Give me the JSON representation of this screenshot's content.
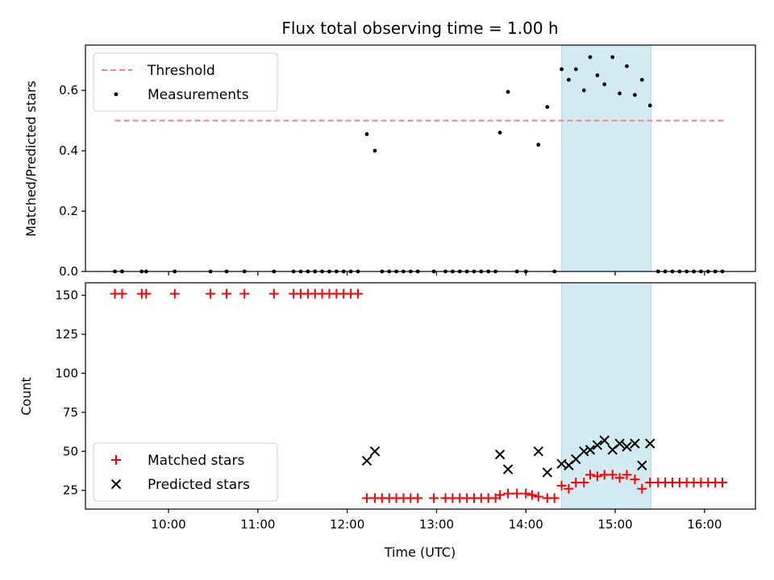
{
  "figure": {
    "title": "Flux total observing time = 1.00 h"
  },
  "chart_data": [
    {
      "type": "scatter",
      "ylabel": "Matched/Predicted stars",
      "xlabel": "",
      "xlim": [
        9.07,
        16.57
      ],
      "ylim": [
        0.0,
        0.75
      ],
      "yticks": [
        "0.0",
        "0.2",
        "0.4",
        "0.6"
      ],
      "ytick_values": [
        0.0,
        0.2,
        0.4,
        0.6
      ],
      "grid": false,
      "legend_position": "upper-left",
      "highlight_span": {
        "start": 14.4,
        "end": 15.4,
        "color": "#add8e6"
      },
      "threshold": {
        "name": "Threshold",
        "value": 0.5,
        "x_start": 9.4,
        "x_end": 16.22,
        "color": "#ff7f7f"
      },
      "series": [
        {
          "name": "Measurements",
          "color": "#000000",
          "marker": "dot",
          "points": [
            [
              9.4,
              0
            ],
            [
              9.48,
              0
            ],
            [
              9.7,
              0
            ],
            [
              9.75,
              0
            ],
            [
              10.07,
              0
            ],
            [
              10.47,
              0
            ],
            [
              10.65,
              0
            ],
            [
              10.85,
              0
            ],
            [
              11.18,
              0
            ],
            [
              11.4,
              0
            ],
            [
              11.48,
              0
            ],
            [
              11.56,
              0
            ],
            [
              11.64,
              0
            ],
            [
              11.72,
              0
            ],
            [
              11.8,
              0
            ],
            [
              11.88,
              0
            ],
            [
              11.96,
              0
            ],
            [
              12.04,
              0
            ],
            [
              12.12,
              0
            ],
            [
              12.22,
              0.455
            ],
            [
              12.31,
              0.4
            ],
            [
              12.39,
              0
            ],
            [
              12.47,
              0
            ],
            [
              12.55,
              0
            ],
            [
              12.63,
              0
            ],
            [
              12.71,
              0
            ],
            [
              12.79,
              0
            ],
            [
              12.97,
              0
            ],
            [
              13.1,
              0
            ],
            [
              13.18,
              0
            ],
            [
              13.26,
              0
            ],
            [
              13.34,
              0
            ],
            [
              13.42,
              0
            ],
            [
              13.5,
              0
            ],
            [
              13.58,
              0
            ],
            [
              13.66,
              0
            ],
            [
              13.71,
              0.46
            ],
            [
              13.8,
              0.595
            ],
            [
              13.9,
              0
            ],
            [
              14.0,
              0
            ],
            [
              14.14,
              0.42
            ],
            [
              14.24,
              0.545
            ],
            [
              14.32,
              0
            ],
            [
              14.4,
              0.67
            ],
            [
              14.48,
              0.635
            ],
            [
              14.56,
              0.67
            ],
            [
              14.65,
              0.6
            ],
            [
              14.72,
              0.71
            ],
            [
              14.8,
              0.65
            ],
            [
              14.88,
              0.62
            ],
            [
              14.97,
              0.71
            ],
            [
              15.05,
              0.59
            ],
            [
              15.13,
              0.68
            ],
            [
              15.22,
              0.585
            ],
            [
              15.3,
              0.635
            ],
            [
              15.39,
              0.55
            ],
            [
              15.48,
              0
            ],
            [
              15.56,
              0
            ],
            [
              15.64,
              0
            ],
            [
              15.72,
              0
            ],
            [
              15.8,
              0
            ],
            [
              15.88,
              0
            ],
            [
              15.96,
              0
            ],
            [
              16.04,
              0
            ],
            [
              16.12,
              0
            ],
            [
              16.2,
              0
            ]
          ]
        }
      ]
    },
    {
      "type": "scatter",
      "ylabel": "Count",
      "xlabel": "Time (UTC)",
      "xlim": [
        9.07,
        16.57
      ],
      "ylim": [
        13,
        158
      ],
      "yticks": [
        "25",
        "50",
        "75",
        "100",
        "125",
        "150"
      ],
      "ytick_values": [
        25,
        50,
        75,
        100,
        125,
        150
      ],
      "xticks": [
        "10:00",
        "11:00",
        "12:00",
        "13:00",
        "14:00",
        "15:00",
        "16:00"
      ],
      "xtick_values": [
        10,
        11,
        12,
        13,
        14,
        15,
        16
      ],
      "grid": false,
      "legend_position": "lower-left",
      "highlight_span": {
        "start": 14.4,
        "end": 15.4,
        "color": "#add8e6"
      },
      "series": [
        {
          "name": "Matched stars",
          "color": "#ff0000",
          "marker": "plus",
          "points": [
            [
              9.4,
              151
            ],
            [
              9.48,
              151
            ],
            [
              9.7,
              151
            ],
            [
              9.75,
              151
            ],
            [
              10.07,
              151
            ],
            [
              10.47,
              151
            ],
            [
              10.65,
              151
            ],
            [
              10.85,
              151
            ],
            [
              11.18,
              151
            ],
            [
              11.4,
              151
            ],
            [
              11.48,
              151
            ],
            [
              11.56,
              151
            ],
            [
              11.64,
              151
            ],
            [
              11.72,
              151
            ],
            [
              11.8,
              151
            ],
            [
              11.88,
              151
            ],
            [
              11.96,
              151
            ],
            [
              12.04,
              151
            ],
            [
              12.12,
              151
            ],
            [
              12.22,
              20
            ],
            [
              12.31,
              20
            ],
            [
              12.39,
              20
            ],
            [
              12.47,
              20
            ],
            [
              12.55,
              20
            ],
            [
              12.63,
              20
            ],
            [
              12.71,
              20
            ],
            [
              12.79,
              20
            ],
            [
              12.97,
              20
            ],
            [
              13.1,
              20
            ],
            [
              13.18,
              20
            ],
            [
              13.26,
              20
            ],
            [
              13.34,
              20
            ],
            [
              13.42,
              20
            ],
            [
              13.5,
              20
            ],
            [
              13.58,
              20
            ],
            [
              13.66,
              20
            ],
            [
              13.71,
              22
            ],
            [
              13.8,
              23
            ],
            [
              13.9,
              23
            ],
            [
              14.0,
              23
            ],
            [
              14.07,
              22
            ],
            [
              14.14,
              21
            ],
            [
              14.24,
              20
            ],
            [
              14.32,
              20
            ],
            [
              14.4,
              28
            ],
            [
              14.48,
              26
            ],
            [
              14.56,
              30
            ],
            [
              14.65,
              30
            ],
            [
              14.72,
              35
            ],
            [
              14.8,
              34
            ],
            [
              14.88,
              35
            ],
            [
              14.97,
              35
            ],
            [
              15.05,
              33
            ],
            [
              15.13,
              35
            ],
            [
              15.22,
              32
            ],
            [
              15.3,
              26
            ],
            [
              15.39,
              30
            ],
            [
              15.48,
              30
            ],
            [
              15.56,
              30
            ],
            [
              15.64,
              30
            ],
            [
              15.72,
              30
            ],
            [
              15.8,
              30
            ],
            [
              15.88,
              30
            ],
            [
              15.96,
              30
            ],
            [
              16.04,
              30
            ],
            [
              16.12,
              30
            ],
            [
              16.2,
              30
            ]
          ]
        },
        {
          "name": "Predicted stars",
          "color": "#000000",
          "marker": "x",
          "points": [
            [
              12.22,
              44
            ],
            [
              12.31,
              50
            ],
            [
              13.71,
              48
            ],
            [
              13.8,
              38.5
            ],
            [
              14.14,
              50
            ],
            [
              14.24,
              36.5
            ],
            [
              14.4,
              42
            ],
            [
              14.48,
              41
            ],
            [
              14.56,
              45
            ],
            [
              14.65,
              50
            ],
            [
              14.72,
              51
            ],
            [
              14.8,
              54
            ],
            [
              14.88,
              57
            ],
            [
              14.97,
              51
            ],
            [
              15.05,
              55
            ],
            [
              15.13,
              53
            ],
            [
              15.22,
              55
            ],
            [
              15.3,
              41
            ],
            [
              15.39,
              55
            ]
          ]
        }
      ]
    }
  ]
}
